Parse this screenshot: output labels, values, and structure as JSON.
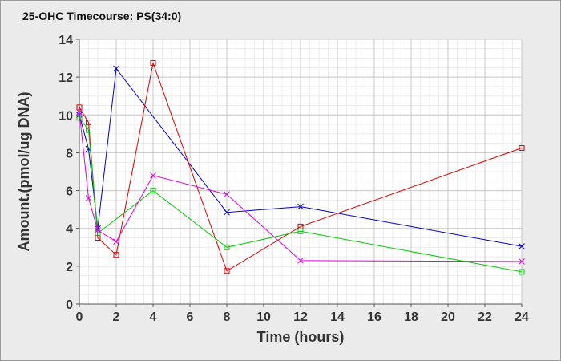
{
  "chart_data": {
    "type": "line",
    "title": "25-OHC Timecourse: PS(34:0)",
    "xlabel": "Time (hours)",
    "ylabel": "Amount.(pmol/ug DNA)",
    "xlim": [
      0,
      24
    ],
    "ylim": [
      0,
      14
    ],
    "xticks": [
      0,
      2,
      4,
      6,
      8,
      10,
      12,
      14,
      16,
      18,
      20,
      22,
      24
    ],
    "yticks": [
      0,
      2,
      4,
      6,
      8,
      10,
      12,
      14
    ],
    "grid": true,
    "legend": "none",
    "series": [
      {
        "color": "#0000cc",
        "marker": "x",
        "points": [
          [
            0,
            10.0
          ],
          [
            0.5,
            8.2
          ],
          [
            1,
            4.0
          ],
          [
            2,
            12.45
          ],
          [
            8,
            4.85
          ],
          [
            12,
            5.15
          ],
          [
            24,
            3.05
          ]
        ]
      },
      {
        "color": "#dd0000",
        "marker": "square",
        "points": [
          [
            0,
            10.4
          ],
          [
            0.5,
            9.6
          ],
          [
            1,
            3.5
          ],
          [
            2,
            2.6
          ],
          [
            4,
            12.75
          ],
          [
            8,
            1.75
          ],
          [
            12,
            4.1
          ],
          [
            24,
            8.25
          ]
        ]
      },
      {
        "color": "#00cc00",
        "marker": "square",
        "points": [
          [
            0,
            9.85
          ],
          [
            0.5,
            9.2
          ],
          [
            1,
            3.75
          ],
          [
            4,
            6.0
          ],
          [
            8,
            3.0
          ],
          [
            12,
            3.85
          ],
          [
            24,
            1.7
          ]
        ]
      },
      {
        "color": "#dd00dd",
        "marker": "x",
        "points": [
          [
            0,
            10.15
          ],
          [
            0.5,
            5.6
          ],
          [
            1,
            3.9
          ],
          [
            2,
            3.3
          ],
          [
            4,
            6.8
          ],
          [
            8,
            5.8
          ],
          [
            12,
            2.3
          ],
          [
            24,
            2.25
          ]
        ]
      }
    ]
  }
}
